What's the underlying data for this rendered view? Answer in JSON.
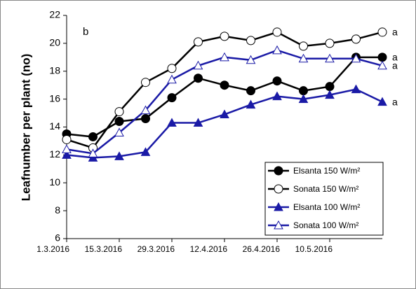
{
  "chart_data": {
    "type": "line",
    "panel_label": "b",
    "ylabel": "Leafnumber per plant (no)",
    "x": [
      "1.3.2016",
      "8.3.2016",
      "15.3.2016",
      "22.3.2016",
      "29.3.2016",
      "5.4.2016",
      "12.4.2016",
      "19.4.2016",
      "26.4.2016",
      "3.5.2016",
      "10.5.2016",
      "17.5.2016",
      "24.5.2016"
    ],
    "xlim": [
      "1.3.2016",
      "24.5.2016"
    ],
    "xticks": [
      "1.3.2016",
      "15.3.2016",
      "29.3.2016",
      "12.4.2016",
      "26.4.2016",
      "10.5.2016"
    ],
    "ylim": [
      6,
      22
    ],
    "yticks": [
      6,
      8,
      10,
      12,
      14,
      16,
      18,
      20,
      22
    ],
    "legend": "lower right",
    "series": [
      {
        "name": "Elsanta 150 W/m²",
        "color": "#000000",
        "marker": "circle",
        "filled": true,
        "annotation": "a",
        "values": [
          13.5,
          13.3,
          14.4,
          14.6,
          16.1,
          17.5,
          17.0,
          16.6,
          17.3,
          16.6,
          16.9,
          19.0,
          19.0
        ]
      },
      {
        "name": "Sonata 150 W/m²",
        "color": "#000000",
        "marker": "circle",
        "filled": false,
        "annotation": "a",
        "values": [
          13.1,
          12.5,
          15.1,
          17.2,
          18.2,
          20.1,
          20.5,
          20.2,
          20.8,
          19.8,
          20.0,
          20.3,
          20.8
        ]
      },
      {
        "name": "Elsanta 100 W/m²",
        "color": "#1a1aa6",
        "marker": "triangle",
        "filled": true,
        "annotation": "a",
        "values": [
          12.0,
          11.8,
          11.9,
          12.2,
          14.3,
          14.3,
          14.9,
          15.6,
          16.2,
          16.0,
          16.3,
          16.7,
          15.8
        ]
      },
      {
        "name": "Sonata 100 W/m²",
        "color": "#1a1aa6",
        "marker": "triangle",
        "filled": false,
        "annotation": "a",
        "values": [
          12.4,
          12.1,
          13.6,
          15.2,
          17.4,
          18.4,
          19.0,
          18.8,
          19.5,
          18.9,
          18.9,
          18.9,
          18.4
        ]
      }
    ]
  }
}
